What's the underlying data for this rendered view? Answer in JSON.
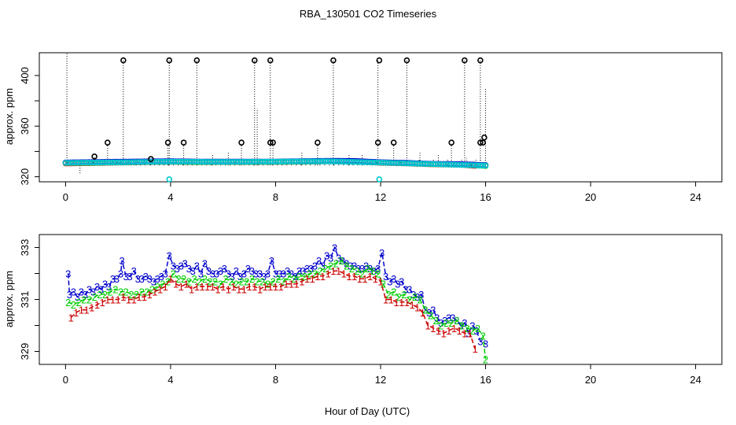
{
  "chart_data": {
    "type": "scatter",
    "title": "RBA_130501  CO2 Timeseries",
    "xlabel": "Hour of Day (UTC)",
    "x_ticks": [
      0,
      4,
      8,
      12,
      16,
      20,
      24
    ],
    "x_tick_labels": [
      "0",
      "4",
      "8",
      "12",
      "16",
      "20",
      "24"
    ],
    "xlim": [
      -1,
      25
    ],
    "panels": [
      {
        "ylabel": "approx. ppm",
        "ylim": [
          316,
          418
        ],
        "y_ticks": [
          320,
          340,
          360,
          380,
          400
        ],
        "y_tick_labels": [
          "320",
          "360",
          "400"
        ],
        "baseline_series": [
          {
            "name": "1",
            "color": "#ff0000",
            "x": [
              0.0,
              1.0,
              2.0,
              3.0,
              4.0,
              5.0,
              6.0,
              7.0,
              8.0,
              9.0,
              10.0,
              11.0,
              12.0,
              13.0,
              14.0,
              15.0,
              15.6
            ],
            "y": [
              330.5,
              330.8,
              331.2,
              331.5,
              331.8,
              331.5,
              331.6,
              331.6,
              331.7,
              331.9,
              332.2,
              332.0,
              331.0,
              330.5,
              329.8,
              329.5,
              328.6
            ]
          },
          {
            "name": "2",
            "color": "#00cc00",
            "x": [
              0.0,
              1.0,
              2.0,
              3.0,
              4.0,
              5.0,
              6.0,
              7.0,
              8.0,
              9.0,
              10.0,
              11.0,
              12.0,
              13.0,
              14.0,
              15.0,
              16.0
            ],
            "y": [
              330.9,
              331.0,
              331.3,
              331.7,
              331.9,
              331.6,
              331.7,
              331.7,
              331.8,
              332.0,
              332.3,
              332.3,
              331.2,
              330.8,
              330.0,
              329.8,
              328.5
            ]
          },
          {
            "name": "3",
            "color": "#0000cc",
            "x": [
              0.0,
              1.0,
              2.0,
              3.0,
              4.0,
              5.0,
              6.0,
              7.0,
              8.0,
              9.0,
              10.0,
              11.0,
              12.0,
              13.0,
              14.0,
              15.0,
              16.0
            ],
            "y": [
              331.3,
              331.6,
              331.9,
              332.1,
              332.3,
              332.0,
              332.0,
              332.0,
              332.0,
              332.3,
              332.6,
              332.5,
              331.5,
              331.0,
              330.2,
              330.0,
              329.2
            ]
          },
          {
            "name": "4",
            "color": "#00cccc",
            "x": [
              0.0,
              2.0,
              4.0,
              6.0,
              8.0,
              10.0,
              12.0,
              14.0,
              16.0
            ],
            "y": [
              331.0,
              331.4,
              331.9,
              331.7,
              331.9,
              332.2,
              331.2,
              330.0,
              328.8
            ]
          }
        ],
        "spikes_x": [
          0.05,
          0.55,
          1.1,
          1.6,
          2.2,
          2.7,
          3.25,
          3.9,
          3.95,
          4.5,
          5.0,
          5.6,
          6.2,
          6.7,
          7.2,
          7.3,
          7.8,
          7.9,
          9.0,
          9.6,
          10.2,
          10.8,
          11.3,
          11.9,
          12.5,
          13.0,
          13.5,
          14.2,
          14.7,
          15.2,
          15.8,
          16.0
        ],
        "spikes_top": [
          418,
          322,
          336,
          346,
          412,
          334,
          334,
          346,
          412,
          346,
          412,
          338,
          340,
          346,
          412,
          374,
          412,
          346,
          340,
          346,
          412,
          338,
          338,
          412,
          346,
          412,
          340,
          338,
          346,
          412,
          412,
          390
        ],
        "high_markers": [
          {
            "x": 1.1,
            "y": 336
          },
          {
            "x": 1.6,
            "y": 347
          },
          {
            "x": 2.2,
            "y": 412
          },
          {
            "x": 3.25,
            "y": 334
          },
          {
            "x": 3.9,
            "y": 347
          },
          {
            "x": 3.95,
            "y": 412
          },
          {
            "x": 4.5,
            "y": 347
          },
          {
            "x": 5.0,
            "y": 412
          },
          {
            "x": 6.7,
            "y": 347
          },
          {
            "x": 7.2,
            "y": 412
          },
          {
            "x": 7.8,
            "y": 412
          },
          {
            "x": 7.8,
            "y": 347
          },
          {
            "x": 7.9,
            "y": 347
          },
          {
            "x": 9.6,
            "y": 347
          },
          {
            "x": 10.2,
            "y": 412
          },
          {
            "x": 11.9,
            "y": 347
          },
          {
            "x": 11.95,
            "y": 412
          },
          {
            "x": 12.5,
            "y": 347
          },
          {
            "x": 13.0,
            "y": 412
          },
          {
            "x": 14.7,
            "y": 347
          },
          {
            "x": 15.2,
            "y": 412
          },
          {
            "x": 15.8,
            "y": 412
          },
          {
            "x": 15.8,
            "y": 347
          },
          {
            "x": 15.9,
            "y": 347
          },
          {
            "x": 15.95,
            "y": 351
          }
        ],
        "low_markers": [
          {
            "x": 3.95,
            "y": 318,
            "color": "#00cccc"
          },
          {
            "x": 11.95,
            "y": 318,
            "color": "#00cccc"
          }
        ]
      },
      {
        "ylabel": "approx. ppm",
        "ylim": [
          328.5,
          333.5
        ],
        "y_ticks": [
          329,
          330,
          331,
          332,
          333
        ],
        "y_tick_labels": [
          "329",
          "331",
          "333"
        ],
        "series": [
          {
            "name": "3",
            "label": "3",
            "color": "#0000cc",
            "x": [
              0.1,
              0.15,
              0.3,
              0.45,
              0.6,
              0.75,
              0.9,
              1.05,
              1.2,
              1.35,
              1.5,
              1.65,
              1.8,
              1.95,
              2.1,
              2.15,
              2.3,
              2.45,
              2.6,
              2.75,
              2.9,
              3.05,
              3.2,
              3.35,
              3.5,
              3.65,
              3.8,
              3.95,
              4.1,
              4.25,
              4.4,
              4.55,
              4.7,
              4.85,
              5.0,
              5.15,
              5.3,
              5.45,
              5.6,
              5.75,
              5.9,
              6.05,
              6.2,
              6.35,
              6.5,
              6.65,
              6.8,
              6.95,
              7.1,
              7.25,
              7.4,
              7.55,
              7.7,
              7.85,
              8.0,
              8.15,
              8.3,
              8.45,
              8.6,
              8.75,
              8.9,
              9.05,
              9.2,
              9.35,
              9.5,
              9.65,
              9.8,
              9.95,
              10.1,
              10.25,
              10.4,
              10.55,
              10.7,
              10.85,
              11.0,
              11.15,
              11.3,
              11.45,
              11.6,
              11.75,
              11.9,
              12.05,
              12.2,
              12.35,
              12.5,
              12.65,
              12.8,
              12.95,
              13.1,
              13.25,
              13.4,
              13.55,
              13.7,
              13.85,
              14.0,
              14.15,
              14.3,
              14.45,
              14.6,
              14.75,
              14.9,
              15.05,
              15.2,
              15.35,
              15.5,
              15.65,
              15.8,
              16.0
            ],
            "y": [
              332.0,
              331.2,
              331.3,
              331.1,
              331.3,
              331.2,
              331.4,
              331.3,
              331.5,
              331.4,
              331.6,
              331.5,
              331.8,
              331.8,
              332.0,
              332.5,
              331.9,
              331.9,
              332.1,
              331.8,
              331.8,
              331.9,
              331.8,
              331.7,
              331.8,
              331.9,
              332.0,
              332.7,
              332.3,
              332.2,
              332.3,
              332.4,
              332.2,
              332.1,
              332.3,
              332.0,
              332.4,
              332.1,
              332.0,
              332.0,
              332.1,
              332.2,
              332.0,
              331.9,
              332.1,
              331.9,
              332.0,
              332.2,
              332.1,
              332.0,
              332.0,
              331.9,
              332.0,
              332.5,
              332.0,
              332.0,
              332.0,
              332.1,
              332.0,
              331.9,
              332.1,
              332.1,
              332.2,
              332.2,
              332.3,
              332.5,
              332.3,
              332.7,
              332.6,
              333.0,
              332.6,
              332.5,
              332.4,
              332.3,
              332.3,
              332.2,
              332.2,
              332.3,
              332.2,
              332.1,
              332.2,
              332.8,
              331.9,
              331.7,
              331.8,
              331.6,
              331.7,
              331.4,
              331.4,
              331.2,
              331.1,
              331.2,
              330.6,
              330.5,
              330.6,
              330.3,
              330.1,
              330.2,
              330.3,
              330.3,
              330.2,
              330.0,
              330.1,
              329.7,
              330.0,
              329.8,
              329.4,
              329.3
            ]
          },
          {
            "name": "2",
            "label": "2",
            "color": "#00cc00",
            "x": [
              0.1,
              0.3,
              0.5,
              0.7,
              0.9,
              1.1,
              1.3,
              1.5,
              1.7,
              1.9,
              2.1,
              2.3,
              2.5,
              2.7,
              2.9,
              3.1,
              3.3,
              3.5,
              3.7,
              3.9,
              4.1,
              4.3,
              4.5,
              4.7,
              4.9,
              5.1,
              5.3,
              5.5,
              5.7,
              5.9,
              6.1,
              6.3,
              6.5,
              6.7,
              6.9,
              7.1,
              7.3,
              7.5,
              7.7,
              7.9,
              8.1,
              8.3,
              8.5,
              8.7,
              8.9,
              9.1,
              9.3,
              9.5,
              9.7,
              9.9,
              10.1,
              10.3,
              10.5,
              10.7,
              10.9,
              11.1,
              11.3,
              11.5,
              11.7,
              11.9,
              12.1,
              12.3,
              12.5,
              12.7,
              12.9,
              13.1,
              13.3,
              13.5,
              13.7,
              13.9,
              14.1,
              14.3,
              14.5,
              14.7,
              14.9,
              15.1,
              15.3,
              15.5,
              15.7,
              15.9,
              16.0
            ],
            "y": [
              330.9,
              330.8,
              330.9,
              331.0,
              331.0,
              331.1,
              331.2,
              331.2,
              331.3,
              331.4,
              331.3,
              331.3,
              331.2,
              331.2,
              331.3,
              331.3,
              331.4,
              331.5,
              331.6,
              331.7,
              332.0,
              331.8,
              331.8,
              331.7,
              331.8,
              331.7,
              331.8,
              331.7,
              331.7,
              331.6,
              331.8,
              331.7,
              331.6,
              331.7,
              331.7,
              331.8,
              331.7,
              331.7,
              331.6,
              331.7,
              331.8,
              331.7,
              331.9,
              331.8,
              331.9,
              331.9,
              332.0,
              332.0,
              332.1,
              332.2,
              332.3,
              332.4,
              332.5,
              332.3,
              332.2,
              332.1,
              332.0,
              332.2,
              332.1,
              332.0,
              331.6,
              331.2,
              331.3,
              331.1,
              331.2,
              331.0,
              331.1,
              331.0,
              330.6,
              330.4,
              330.2,
              330.0,
              330.1,
              330.1,
              330.2,
              330.0,
              329.9,
              329.8,
              329.9,
              329.6,
              328.7
            ]
          },
          {
            "name": "1",
            "label": "1",
            "color": "#cc0000",
            "x": [
              0.2,
              0.4,
              0.6,
              0.8,
              1.0,
              1.2,
              1.4,
              1.6,
              1.8,
              2.0,
              2.2,
              2.4,
              2.6,
              2.8,
              3.0,
              3.2,
              3.4,
              3.6,
              3.8,
              4.0,
              4.2,
              4.4,
              4.6,
              4.8,
              5.0,
              5.2,
              5.4,
              5.6,
              5.8,
              6.0,
              6.2,
              6.4,
              6.6,
              6.8,
              7.0,
              7.2,
              7.4,
              7.6,
              7.8,
              8.0,
              8.2,
              8.4,
              8.6,
              8.8,
              9.0,
              9.2,
              9.4,
              9.6,
              9.8,
              10.0,
              10.2,
              10.4,
              10.6,
              10.8,
              11.0,
              11.2,
              11.4,
              11.6,
              11.8,
              12.0,
              12.2,
              12.4,
              12.6,
              12.8,
              13.0,
              13.2,
              13.4,
              13.6,
              13.8,
              14.0,
              14.2,
              14.4,
              14.6,
              14.8,
              15.0,
              15.2,
              15.4,
              15.6
            ],
            "y": [
              330.3,
              330.5,
              330.6,
              330.6,
              330.7,
              330.8,
              330.9,
              331.0,
              331.0,
              331.0,
              331.1,
              331.0,
              331.0,
              331.1,
              331.1,
              331.2,
              331.3,
              331.4,
              331.5,
              331.8,
              331.6,
              331.5,
              331.6,
              331.4,
              331.5,
              331.5,
              331.5,
              331.5,
              331.4,
              331.5,
              331.4,
              331.5,
              331.4,
              331.4,
              331.5,
              331.5,
              331.4,
              331.5,
              331.5,
              331.5,
              331.5,
              331.6,
              331.6,
              331.6,
              331.7,
              331.8,
              331.8,
              331.9,
              331.9,
              332.0,
              332.1,
              332.1,
              332.0,
              331.9,
              331.9,
              331.8,
              331.8,
              331.9,
              331.8,
              331.7,
              331.0,
              331.0,
              330.9,
              330.9,
              330.9,
              330.8,
              330.7,
              330.5,
              330.0,
              329.9,
              329.8,
              329.7,
              329.8,
              329.9,
              329.8,
              329.7,
              329.7,
              329.1
            ]
          }
        ]
      }
    ]
  }
}
